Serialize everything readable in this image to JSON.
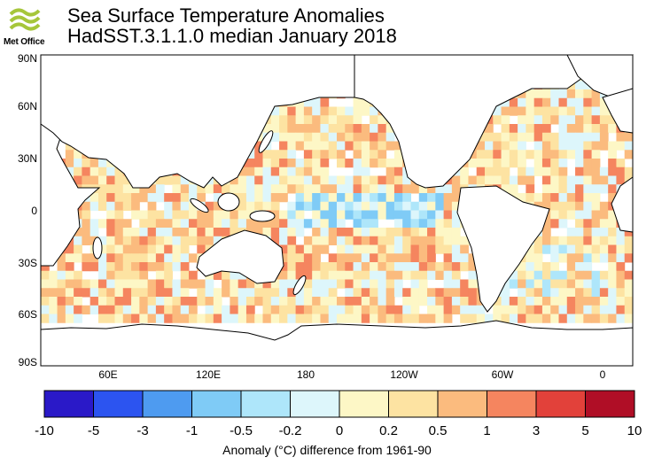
{
  "header": {
    "logo_text": "Met Office",
    "title_line1": "Sea Surface Temperature Anomalies",
    "title_line2": "HadSST.3.1.1.0 median January 2018"
  },
  "map": {
    "lat_labels": [
      "90N",
      "60N",
      "30N",
      "0",
      "30S",
      "60S",
      "90S"
    ],
    "lon_labels": [
      "60E",
      "120E",
      "180",
      "120W",
      "60W",
      "0"
    ]
  },
  "colorbar": {
    "tick_labels": [
      "-10",
      "-5",
      "-3",
      "-1",
      "-0.5",
      "-0.2",
      "0",
      "0.2",
      "0.5",
      "1",
      "3",
      "5",
      "10"
    ],
    "colors": [
      "#2a19c8",
      "#2c54f0",
      "#4e9bf0",
      "#7fcbf6",
      "#aee6fa",
      "#ddf6fb",
      "#fdf7c6",
      "#fde3a2",
      "#fbbb7e",
      "#f5855f",
      "#e2413a",
      "#b00e26"
    ],
    "caption": "Anomaly (°C) difference from 1961-90"
  },
  "colors": {
    "land": "#ffffff",
    "coast": "#000000",
    "missing": "#ffffff"
  }
}
